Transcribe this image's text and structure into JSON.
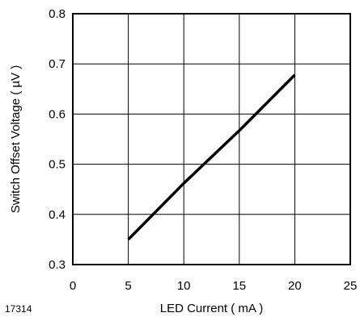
{
  "figure_number": "17314",
  "chart_data": {
    "type": "line",
    "xlabel": "LED Current ( mA )",
    "ylabel": "Switch Offset Voltage  ( µV )",
    "xlim": [
      0,
      25
    ],
    "ylim": [
      0.3,
      0.8
    ],
    "x_ticks": [
      0,
      5,
      10,
      15,
      20,
      25
    ],
    "y_ticks": [
      0.3,
      0.4,
      0.5,
      0.6,
      0.7,
      0.8
    ],
    "x_tick_labels": [
      "0",
      "5",
      "10",
      "15",
      "20",
      "25"
    ],
    "y_tick_labels": [
      "0.3",
      "0.4",
      "0.5",
      "0.6",
      "0.7",
      "0.8"
    ],
    "grid": true,
    "series": [
      {
        "x": [
          5,
          10,
          15,
          20
        ],
        "y": [
          0.35,
          0.462,
          0.567,
          0.678
        ],
        "color": "#000000"
      }
    ]
  }
}
